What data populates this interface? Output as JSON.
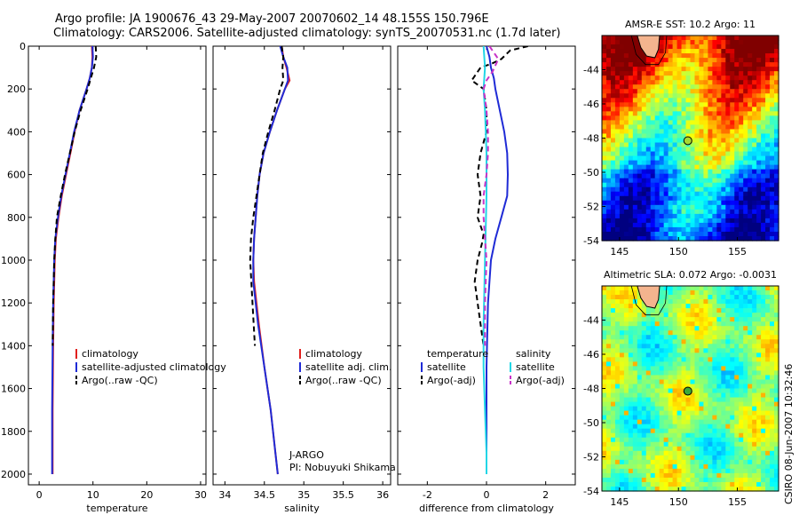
{
  "titles": {
    "line1": "Argo profile: JA 1900676_43 29-May-2007 20070602_14 48.155S 150.796E",
    "line2": "Climatology: CARS2006. Satellite-adjusted climatology: synTS_20070531.nc (1.7d later)"
  },
  "colors": {
    "climatology": "#e0201e",
    "satellite": "#1f2bd6",
    "argo": "#000000",
    "sat_diff": "#22d6e6",
    "argo_diff": "#c832c8"
  },
  "chart_data": [
    {
      "type": "line",
      "id": "temperature",
      "xlabel": "temperature",
      "xlim": [
        -2,
        31
      ],
      "ylim": [
        0,
        2050
      ],
      "xticks": [
        0,
        10,
        20,
        30
      ],
      "yticks": [
        0,
        200,
        400,
        600,
        800,
        1000,
        1200,
        1400,
        1600,
        1800,
        2000
      ],
      "legend": [
        "climatology",
        "satellite-adjusted climatology",
        "Argo(..raw -QC)"
      ],
      "series": [
        {
          "name": "climatology",
          "style": "solid",
          "color": "climatology",
          "x": [
            9.8,
            9.9,
            9.8,
            9.4,
            8.8,
            7.5,
            6.6,
            5.8,
            5.0,
            4.2,
            3.6,
            3.1,
            2.9,
            2.7,
            2.6,
            2.5,
            2.5
          ],
          "y": [
            0,
            50,
            100,
            150,
            200,
            300,
            400,
            500,
            600,
            700,
            800,
            900,
            1000,
            1200,
            1400,
            1700,
            2000
          ]
        },
        {
          "name": "satellite-adjusted climatology",
          "style": "solid",
          "color": "satellite",
          "x": [
            9.9,
            10.0,
            9.8,
            9.4,
            8.8,
            7.5,
            6.5,
            5.7,
            4.9,
            4.1,
            3.5,
            3.0,
            2.8,
            2.6,
            2.5,
            2.4,
            2.4
          ],
          "y": [
            0,
            50,
            100,
            150,
            200,
            300,
            400,
            500,
            600,
            700,
            800,
            900,
            1000,
            1200,
            1400,
            1700,
            2000
          ]
        },
        {
          "name": "Argo(..raw -QC)",
          "style": "dash",
          "color": "argo",
          "x": [
            10.5,
            10.6,
            10.2,
            9.6,
            9.0,
            7.7,
            6.6,
            5.7,
            4.8,
            4.0,
            3.3,
            3.0,
            2.8,
            2.7,
            2.6,
            2.5
          ],
          "y": [
            0,
            50,
            100,
            150,
            200,
            300,
            400,
            500,
            600,
            700,
            800,
            900,
            1000,
            1100,
            1200,
            1400
          ]
        }
      ]
    },
    {
      "type": "line",
      "id": "salinity",
      "xlabel": "salinity",
      "xlim": [
        33.85,
        36.1
      ],
      "ylim": [
        0,
        2050
      ],
      "xticks": [
        34,
        34.5,
        35,
        35.5,
        36
      ],
      "yticks": [
        0,
        200,
        400,
        600,
        800,
        1000,
        1200,
        1400,
        1600,
        1800,
        2000
      ],
      "legend": [
        "climatology",
        "satellite adj. clim.",
        "Argo(..raw -QC)"
      ],
      "annotation": [
        "J-ARGO",
        "PI: Nobuyuki Shikama"
      ],
      "series": [
        {
          "name": "climatology",
          "style": "solid",
          "color": "climatology",
          "x": [
            34.72,
            34.74,
            34.78,
            34.82,
            34.76,
            34.66,
            34.57,
            34.49,
            34.44,
            34.41,
            34.39,
            34.37,
            34.36,
            34.37,
            34.43,
            34.5,
            34.58,
            34.64,
            34.67
          ],
          "y": [
            0,
            50,
            100,
            160,
            200,
            300,
            400,
            500,
            600,
            700,
            800,
            900,
            1000,
            1100,
            1300,
            1500,
            1700,
            1900,
            2000
          ]
        },
        {
          "name": "satellite adj. clim.",
          "style": "solid",
          "color": "satellite",
          "x": [
            34.7,
            34.74,
            34.79,
            34.8,
            34.76,
            34.66,
            34.57,
            34.49,
            34.44,
            34.41,
            34.39,
            34.37,
            34.36,
            34.36,
            34.42,
            34.5,
            34.58,
            34.64,
            34.67
          ],
          "y": [
            0,
            50,
            100,
            160,
            200,
            300,
            400,
            500,
            600,
            700,
            800,
            900,
            1000,
            1100,
            1300,
            1500,
            1700,
            1900,
            2000
          ]
        },
        {
          "name": "Argo(..raw -QC)",
          "style": "dash",
          "color": "argo",
          "x": [
            34.72,
            34.74,
            34.73,
            34.74,
            34.7,
            34.63,
            34.55,
            34.48,
            34.44,
            34.4,
            34.36,
            34.33,
            34.32,
            34.35,
            34.38
          ],
          "y": [
            0,
            50,
            100,
            160,
            200,
            300,
            400,
            500,
            600,
            700,
            800,
            900,
            1000,
            1200,
            1400
          ]
        }
      ]
    },
    {
      "type": "line",
      "id": "difference",
      "xlabel": "difference from climatology",
      "xlim": [
        -3,
        3
      ],
      "ylim": [
        0,
        2050
      ],
      "xticks": [
        -2,
        0,
        2
      ],
      "yticks": [
        0,
        200,
        400,
        600,
        800,
        1000,
        1200,
        1400,
        1600,
        1800,
        2000
      ],
      "legend": [
        {
          "header": "temperature",
          "items": [
            "satellite",
            "Argo(-adj)"
          ]
        },
        {
          "header": "salinity",
          "items": [
            "satellite",
            "Argo(-adj)"
          ]
        }
      ],
      "series": [
        {
          "name": "temperature satellite",
          "style": "solid",
          "color": "satellite",
          "x": [
            0.0,
            0.1,
            0.15,
            0.25,
            0.3,
            0.45,
            0.6,
            0.7,
            0.72,
            0.7,
            0.5,
            0.3,
            0.15,
            0.05,
            0.0,
            0.0,
            0.0
          ],
          "y": [
            0,
            50,
            100,
            150,
            200,
            300,
            400,
            500,
            600,
            700,
            800,
            900,
            1000,
            1200,
            1500,
            1800,
            2000
          ]
        },
        {
          "name": "temperature Argo(-adj)",
          "style": "dash",
          "color": "argo",
          "x": [
            1.4,
            0.8,
            0.5,
            0.2,
            -0.2,
            -0.5,
            -0.1,
            0.0,
            0.0,
            -0.2,
            -0.3,
            -0.2,
            -0.3,
            -0.1,
            -0.15,
            -0.3,
            -0.4,
            -0.3,
            -0.1
          ],
          "y": [
            0,
            20,
            60,
            80,
            100,
            160,
            200,
            300,
            400,
            500,
            600,
            700,
            800,
            880,
            920,
            1000,
            1100,
            1200,
            1400
          ]
        },
        {
          "name": "salinity satellite",
          "style": "solid",
          "color": "sat_diff",
          "x": [
            -0.1,
            -0.05,
            -0.1,
            -0.05,
            0.0,
            0.0,
            -0.05,
            -0.1,
            -0.1,
            -0.05,
            0.0,
            0.0
          ],
          "y": [
            0,
            100,
            200,
            300,
            500,
            700,
            1000,
            1300,
            1500,
            1700,
            1900,
            2000
          ]
        },
        {
          "name": "salinity Argo(-adj)",
          "style": "dash",
          "color": "argo_diff",
          "x": [
            0.1,
            0.4,
            0.2,
            0.0,
            -0.1,
            0.0,
            0.05,
            0.05,
            0.0,
            -0.1,
            -0.1,
            0.0,
            -0.05,
            -0.05
          ],
          "y": [
            0,
            60,
            120,
            160,
            200,
            300,
            400,
            500,
            600,
            700,
            800,
            1000,
            1200,
            1400
          ]
        }
      ]
    },
    {
      "type": "heatmap",
      "id": "sst_map",
      "title": "AMSR-E SST: 10.2 Argo: 11",
      "xlim": [
        143.5,
        158.5
      ],
      "ylim": [
        -54,
        -42
      ],
      "xticks": [
        145,
        150,
        155
      ],
      "yticks": [
        -44,
        -46,
        -48,
        -50,
        -52,
        -54
      ],
      "marker": {
        "lon": 150.796,
        "lat": -48.155
      }
    },
    {
      "type": "heatmap",
      "id": "sla_map",
      "title": "Altimetric SLA: 0.072 Argo: -0.0031",
      "xlim": [
        143.5,
        158.5
      ],
      "ylim": [
        -54,
        -42
      ],
      "xticks": [
        145,
        150,
        155
      ],
      "yticks": [
        -44,
        -46,
        -48,
        -50,
        -52,
        -54
      ],
      "marker": {
        "lon": 150.796,
        "lat": -48.155
      }
    }
  ],
  "stamp": "CSIRO 08-Jun-2007 10:32:46"
}
